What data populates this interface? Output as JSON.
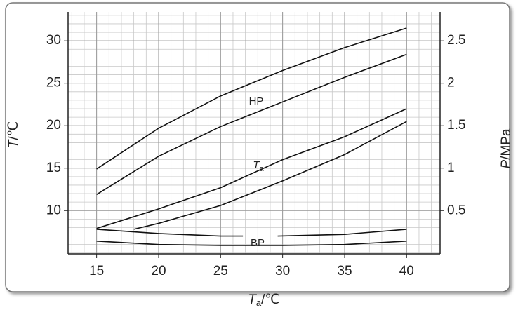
{
  "chart_data": {
    "type": "line",
    "x_label": {
      "main": "T",
      "sub": "a",
      "rest": "/℃"
    },
    "y_label": {
      "main": "T",
      "rest": "/℃"
    },
    "y2_label": {
      "main": "P",
      "rest": "/MPa"
    },
    "xlim": [
      12.7,
      42.7
    ],
    "xticks": [
      15,
      20,
      25,
      30,
      35,
      40
    ],
    "ylim": [
      4.9,
      33.4
    ],
    "yticks": [
      10,
      15,
      20,
      25,
      30
    ],
    "y2lim": [
      -0.01,
      2.84
    ],
    "y2ticks": [
      0.5,
      1,
      1.5,
      2,
      2.5
    ],
    "grid": true,
    "series": [
      {
        "color": "#111",
        "x": [
          15,
          20,
          25,
          30,
          35,
          40
        ],
        "values": [
          14.9,
          19.7,
          23.5,
          26.5,
          29.2,
          31.5
        ]
      },
      {
        "color": "#111",
        "x": [
          15,
          20,
          25,
          30,
          35,
          40
        ],
        "values": [
          11.9,
          16.4,
          19.9,
          22.8,
          25.7,
          28.4
        ]
      },
      {
        "color": "#111",
        "x": [
          15,
          20,
          25,
          30,
          35,
          40
        ],
        "values": [
          7.9,
          10.2,
          12.7,
          16.0,
          18.7,
          22.0
        ]
      },
      {
        "color": "#111",
        "x": [
          18,
          20,
          25,
          30,
          35,
          40
        ],
        "values": [
          7.8,
          8.5,
          10.6,
          13.5,
          16.6,
          20.5
        ]
      },
      {
        "color": "#111",
        "x": [
          15,
          20,
          25,
          26.8,
          28,
          29.6,
          35,
          40
        ],
        "values": [
          7.8,
          7.3,
          7.0,
          7.0,
          null,
          7.0,
          7.2,
          7.8
        ]
      },
      {
        "color": "#111",
        "x": [
          15,
          20,
          25,
          30,
          35,
          40
        ],
        "values": [
          6.4,
          6.0,
          5.9,
          5.9,
          6.0,
          6.4
        ]
      }
    ],
    "annotations": [
      {
        "text": "HP"
      },
      {
        "text": "T",
        "sub": "a"
      },
      {
        "text": "BP"
      }
    ]
  }
}
